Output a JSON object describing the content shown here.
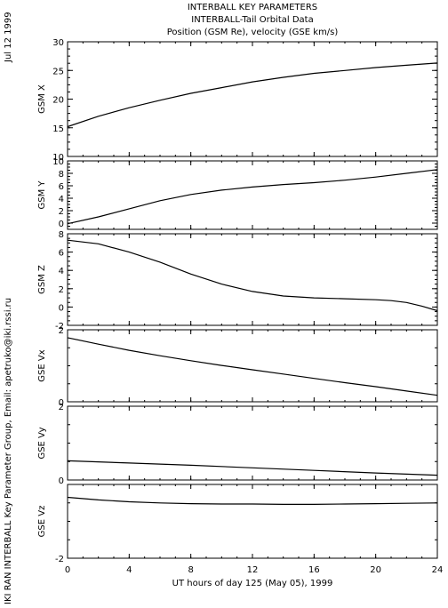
{
  "header": {
    "title_lines": [
      "INTERBALL KEY PARAMETERS",
      "INTERBALL-Tail Orbital Data",
      "Position (GSM Re), velocity (GSE km/s)"
    ],
    "date_label": "Jul 12 1999",
    "credit": "IKI RAN INTERBALL Key Parameter Group, Email: apetruko@iki.rssi.ru"
  },
  "chart_data": [
    {
      "type": "line",
      "ylabel": "GSM X",
      "ylim": [
        10,
        30
      ],
      "yticks": [
        10,
        15,
        20,
        25,
        30
      ],
      "series": [
        {
          "x": [
            0,
            2,
            4,
            6,
            8,
            10,
            12,
            14,
            16,
            18,
            20,
            22,
            24
          ],
          "y": [
            15.2,
            17.0,
            18.5,
            19.8,
            21.0,
            22.0,
            23.0,
            23.8,
            24.5,
            25.0,
            25.5,
            25.9,
            26.3
          ]
        }
      ]
    },
    {
      "type": "line",
      "ylabel": "GSM Y",
      "ylim": [
        -1,
        10
      ],
      "yticks": [
        0,
        2,
        4,
        6,
        8,
        10
      ],
      "series": [
        {
          "x": [
            0,
            2,
            4,
            6,
            8,
            10,
            12,
            14,
            16,
            18,
            20,
            22,
            24
          ],
          "y": [
            -0.1,
            1.0,
            2.3,
            3.6,
            4.6,
            5.3,
            5.8,
            6.2,
            6.5,
            6.9,
            7.4,
            8.0,
            8.6
          ]
        }
      ]
    },
    {
      "type": "line",
      "ylabel": "GSM Z",
      "ylim": [
        -2,
        8
      ],
      "yticks": [
        -2,
        0,
        2,
        4,
        6,
        8
      ],
      "series": [
        {
          "x": [
            0,
            2,
            4,
            6,
            8,
            10,
            12,
            14,
            16,
            18,
            20,
            21,
            22,
            23,
            24
          ],
          "y": [
            7.3,
            6.9,
            6.0,
            4.9,
            3.6,
            2.5,
            1.7,
            1.2,
            1.0,
            0.9,
            0.8,
            0.7,
            0.5,
            0.1,
            -0.4
          ]
        }
      ]
    },
    {
      "type": "line",
      "ylabel": "GSE Vx",
      "ylim": [
        0,
        2
      ],
      "yticks": [
        0,
        2
      ],
      "series": [
        {
          "x": [
            0,
            2,
            4,
            6,
            8,
            10,
            12,
            14,
            16,
            18,
            20,
            22,
            24
          ],
          "y": [
            1.78,
            1.6,
            1.43,
            1.28,
            1.14,
            1.01,
            0.89,
            0.77,
            0.65,
            0.53,
            0.42,
            0.3,
            0.18
          ]
        }
      ]
    },
    {
      "type": "line",
      "ylabel": "GSE Vy",
      "ylim": [
        0,
        2
      ],
      "yticks": [
        0,
        2
      ],
      "series": [
        {
          "x": [
            0,
            4,
            8,
            12,
            16,
            20,
            24
          ],
          "y": [
            0.52,
            0.46,
            0.4,
            0.33,
            0.26,
            0.19,
            0.13
          ]
        }
      ]
    },
    {
      "type": "line",
      "ylabel": "GSE Vz",
      "ylim": [
        -2,
        0
      ],
      "yticks": [
        -2
      ],
      "series": [
        {
          "x": [
            0,
            2,
            4,
            6,
            8,
            10,
            12,
            14,
            16,
            18,
            20,
            22,
            24
          ],
          "y": [
            -0.35,
            -0.42,
            -0.47,
            -0.5,
            -0.52,
            -0.53,
            -0.53,
            -0.54,
            -0.54,
            -0.53,
            -0.52,
            -0.51,
            -0.5
          ]
        }
      ]
    }
  ],
  "xaxis": {
    "xlim": [
      0,
      24
    ],
    "ticks": [
      0,
      4,
      8,
      12,
      16,
      20,
      24
    ],
    "label": "UT hours of day 125 (May 05), 1999"
  }
}
